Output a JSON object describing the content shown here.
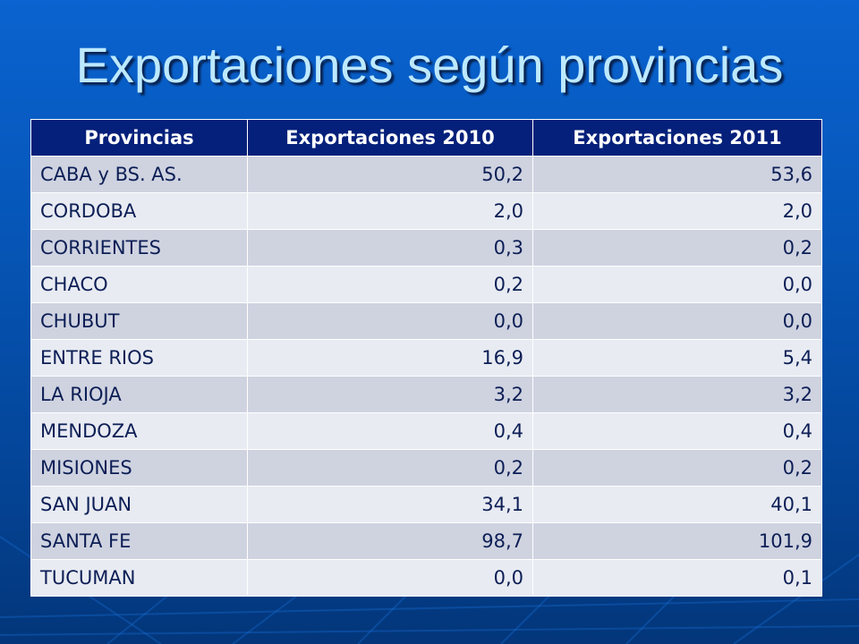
{
  "slide": {
    "title": "Exportaciones según provincias"
  },
  "table": {
    "headers": [
      "Provincias",
      "Exportaciones 2010",
      "Exportaciones 2011"
    ],
    "rows": [
      {
        "provincia": "CABA y BS. AS.",
        "exp2010": "50,2",
        "exp2011": "53,6"
      },
      {
        "provincia": "CORDOBA",
        "exp2010": "2,0",
        "exp2011": "2,0"
      },
      {
        "provincia": "CORRIENTES",
        "exp2010": "0,3",
        "exp2011": "0,2"
      },
      {
        "provincia": "CHACO",
        "exp2010": "0,2",
        "exp2011": "0,0"
      },
      {
        "provincia": "CHUBUT",
        "exp2010": "0,0",
        "exp2011": "0,0"
      },
      {
        "provincia": "ENTRE RIOS",
        "exp2010": "16,9",
        "exp2011": "5,4"
      },
      {
        "provincia": "LA RIOJA",
        "exp2010": "3,2",
        "exp2011": "3,2"
      },
      {
        "provincia": "MENDOZA",
        "exp2010": "0,4",
        "exp2011": "0,4"
      },
      {
        "provincia": "MISIONES",
        "exp2010": "0,2",
        "exp2011": "0,2"
      },
      {
        "provincia": "SAN JUAN",
        "exp2010": "34,1",
        "exp2011": "40,1"
      },
      {
        "provincia": "SANTA FE",
        "exp2010": "98,7",
        "exp2011": "101,9"
      },
      {
        "provincia": "TUCUMAN",
        "exp2010": "0,0",
        "exp2011": "0,1"
      }
    ]
  },
  "colors": {
    "header_bg": "#04207a",
    "title_text": "#bde9ff",
    "row_odd": "#cfd3e0",
    "row_even": "#e8ebf2"
  }
}
